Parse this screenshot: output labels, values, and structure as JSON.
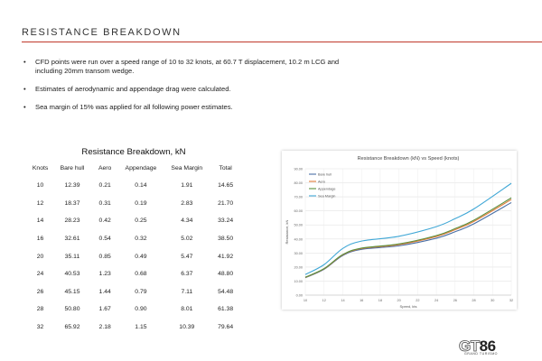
{
  "header": {
    "title": "RESISTANCE BREAKDOWN",
    "accent_color": "#c0392b"
  },
  "bullets": [
    "CFD points were run over a speed range of 10 to 32 knots, at 60.7 T displacement, 10.2 m LCG and including 20mm transom wedge.",
    "Estimates of aerodynamic and appendage drag were calculated.",
    "Sea margin of 15% was applied for all following power estimates."
  ],
  "table": {
    "title": "Resistance Breakdown, kN",
    "columns": [
      "Knots",
      "Bare hull",
      "Aero",
      "Appendage",
      "Sea Margin",
      "Total"
    ],
    "rows": [
      [
        "10",
        "12.39",
        "0.21",
        "0.14",
        "1.91",
        "14.65"
      ],
      [
        "12",
        "18.37",
        "0.31",
        "0.19",
        "2.83",
        "21.70"
      ],
      [
        "14",
        "28.23",
        "0.42",
        "0.25",
        "4.34",
        "33.24"
      ],
      [
        "16",
        "32.61",
        "0.54",
        "0.32",
        "5.02",
        "38.50"
      ],
      [
        "20",
        "35.11",
        "0.85",
        "0.49",
        "5.47",
        "41.92"
      ],
      [
        "24",
        "40.53",
        "1.23",
        "0.68",
        "6.37",
        "48.80"
      ],
      [
        "26",
        "45.15",
        "1.44",
        "0.79",
        "7.11",
        "54.48"
      ],
      [
        "28",
        "50.80",
        "1.67",
        "0.90",
        "8.01",
        "61.38"
      ],
      [
        "32",
        "65.92",
        "2.18",
        "1.15",
        "10.39",
        "79.64"
      ]
    ]
  },
  "chart_data": {
    "type": "line",
    "title": "Resistance Breakdown (kN) vs Speed (knots)",
    "xlabel": "Speed, kts",
    "ylabel": "Resistance, kN",
    "xlim": [
      10,
      32
    ],
    "ylim": [
      0,
      90
    ],
    "x_ticks": [
      "10",
      "12",
      "14",
      "16",
      "18",
      "20",
      "22",
      "24",
      "26",
      "28",
      "30",
      "32"
    ],
    "y_ticks": [
      "0.00",
      "10.00",
      "20.00",
      "30.00",
      "40.00",
      "50.00",
      "60.00",
      "70.00",
      "80.00",
      "90.00"
    ],
    "grid": true,
    "legend_position": "top-left",
    "x": [
      10,
      12,
      14,
      16,
      20,
      24,
      26,
      28,
      32
    ],
    "series": [
      {
        "name": "Bare hull",
        "color": "#4a6fa5",
        "values": [
          12.39,
          18.37,
          28.23,
          32.61,
          35.11,
          40.53,
          45.15,
          50.8,
          65.92
        ]
      },
      {
        "name": "Aero",
        "color": "#e07b39",
        "values": [
          12.6,
          18.68,
          28.65,
          33.15,
          35.96,
          41.76,
          46.59,
          52.47,
          68.1
        ]
      },
      {
        "name": "Appendage",
        "color": "#5a8f3d",
        "values": [
          12.74,
          18.87,
          28.9,
          33.47,
          36.45,
          42.44,
          47.38,
          53.37,
          69.25
        ]
      },
      {
        "name": "Sea Margin",
        "color": "#3fa7d6",
        "values": [
          14.65,
          21.7,
          33.24,
          38.5,
          41.92,
          48.8,
          54.48,
          61.38,
          79.64
        ]
      }
    ]
  },
  "logo": {
    "main_gt": "GT",
    "main_num": "86",
    "sub": "GRAND TURISMO"
  }
}
